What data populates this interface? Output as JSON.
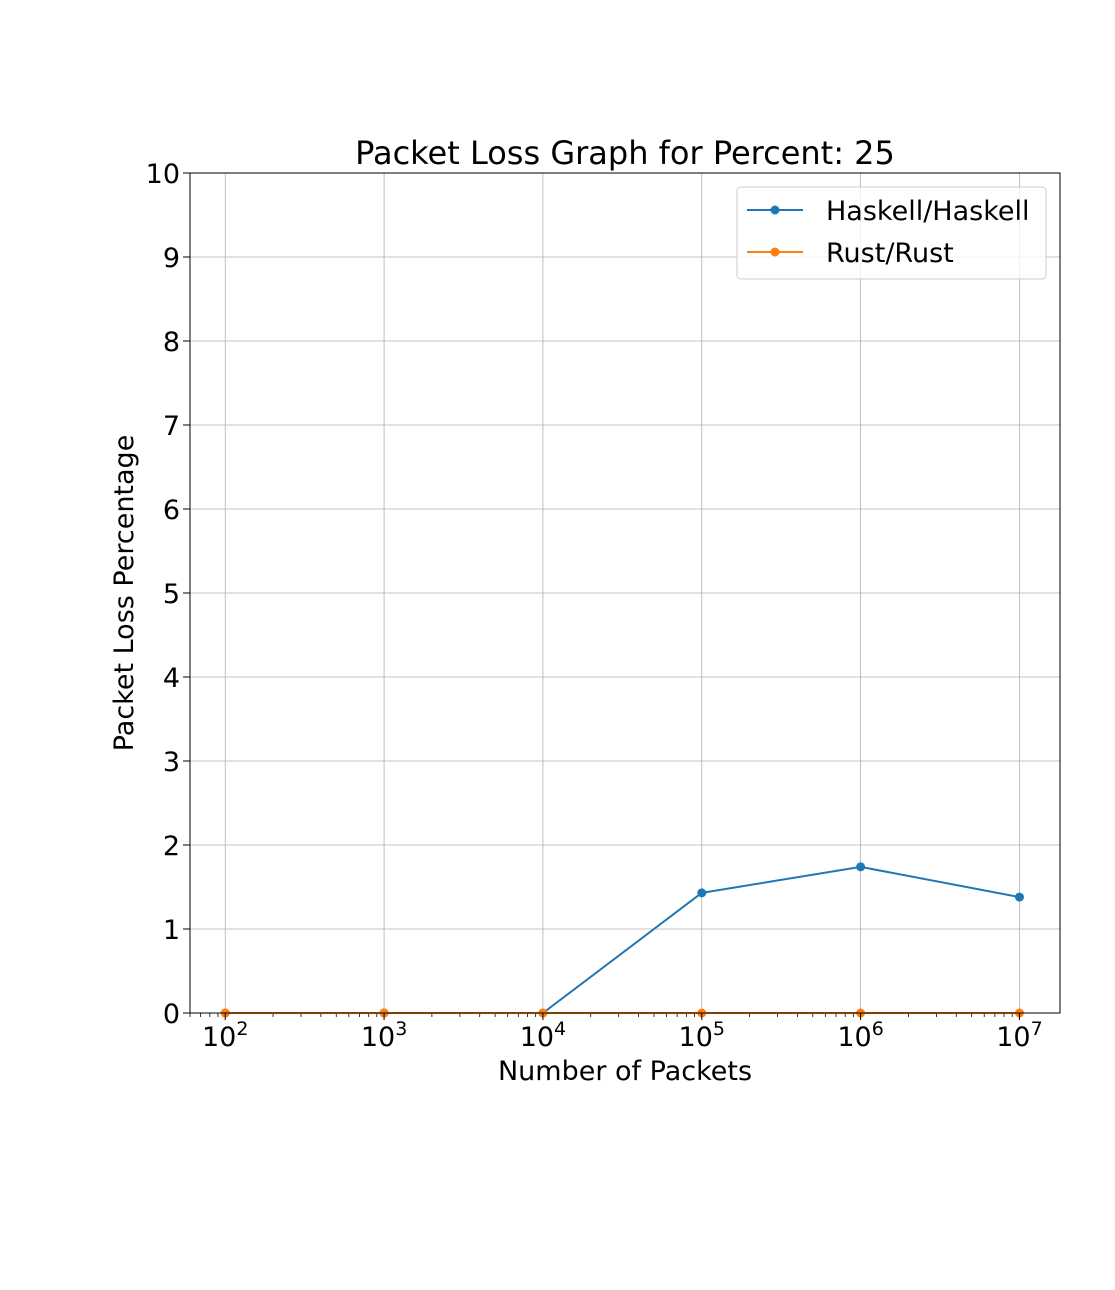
{
  "chart_data": {
    "type": "line",
    "title": "Packet Loss Graph for Percent: 25",
    "xlabel": "Number of Packets",
    "ylabel": "Packet Loss Percentage",
    "xscale": "log",
    "xlim": [
      60,
      18000000
    ],
    "ylim": [
      0,
      10
    ],
    "xticks": [
      {
        "base": "10",
        "exp": "2",
        "value": 100
      },
      {
        "base": "10",
        "exp": "3",
        "value": 1000
      },
      {
        "base": "10",
        "exp": "4",
        "value": 10000
      },
      {
        "base": "10",
        "exp": "5",
        "value": 100000
      },
      {
        "base": "10",
        "exp": "6",
        "value": 1000000
      },
      {
        "base": "10",
        "exp": "7",
        "value": 10000000
      }
    ],
    "yticks": [
      "0",
      "1",
      "2",
      "3",
      "4",
      "5",
      "6",
      "7",
      "8",
      "9",
      "10"
    ],
    "grid": true,
    "legend_position": "top-right",
    "x": [
      100,
      1000,
      10000,
      100000,
      1000000,
      10000000
    ],
    "series": [
      {
        "name": "Haskell/Haskell",
        "color": "#1f77b4",
        "values": [
          0,
          0,
          0,
          1.43,
          1.74,
          1.38
        ]
      },
      {
        "name": "Rust/Rust",
        "color": "#ff7f0e",
        "values": [
          0,
          0,
          0,
          0,
          0,
          0
        ]
      }
    ]
  }
}
